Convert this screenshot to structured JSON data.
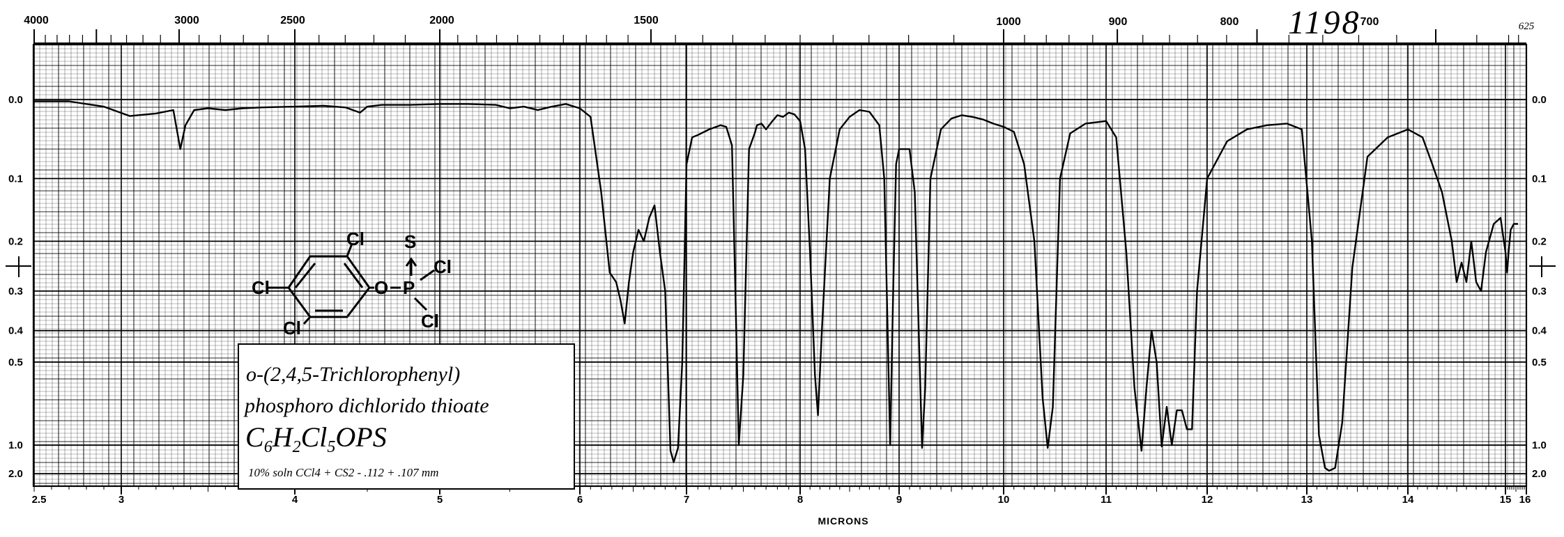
{
  "chart_data": {
    "type": "line",
    "xlabel": "MICRONS",
    "x_axis_unit": "microns",
    "xlim": [
      2.5,
      16
    ],
    "x_ticks": [
      "2.5",
      "3",
      "4",
      "5",
      "6",
      "7",
      "8",
      "9",
      "10",
      "11",
      "12",
      "13",
      "14",
      "15",
      "16"
    ],
    "top_axis_ticks": [
      "4000",
      "3000",
      "2500",
      "2000",
      "1500",
      "1000",
      "900",
      "800",
      "700",
      "625"
    ],
    "y_axis_unit": "absorbance",
    "ylim": [
      0.0,
      2.0
    ],
    "y_ticks": [
      "0.0",
      "0.1",
      "0.2",
      "0.3",
      "0.4",
      "0.5",
      "1.0",
      "2.0"
    ],
    "grid": true,
    "catalog_number": "1198",
    "compound_name_line1": "o-(2,4,5-Trichlorophenyl)",
    "compound_name_line2": "phosphoro dichlorido thioate",
    "formula": "C6H2Cl5OPS",
    "conditions": "10% soln CCl4 + CS2 - .112 + .107 mm",
    "structure_labels": [
      "Cl",
      "Cl",
      "Cl",
      "O",
      "P",
      "S",
      "Cl",
      "Cl"
    ],
    "series": [
      {
        "x": [
          2.5,
          2.7,
          2.9,
          3.05,
          3.2,
          3.3,
          3.34,
          3.37,
          3.42,
          3.5,
          3.6,
          3.7,
          3.8,
          4.0,
          4.2,
          4.35,
          4.45,
          4.5,
          4.6,
          4.8,
          5.0,
          5.2,
          5.4,
          5.5,
          5.6,
          5.7,
          5.8,
          5.9,
          6.0,
          6.1,
          6.2,
          6.28,
          6.34,
          6.38,
          6.42,
          6.46,
          6.5,
          6.55,
          6.6,
          6.65,
          6.7,
          6.75,
          6.8,
          6.85,
          6.88,
          6.92,
          6.96,
          7.0,
          7.05,
          7.1,
          7.2,
          7.3,
          7.35,
          7.4,
          7.43,
          7.46,
          7.5,
          7.55,
          7.6,
          7.62,
          7.66,
          7.7,
          7.75,
          7.8,
          7.85,
          7.9,
          7.95,
          8.0,
          8.05,
          8.1,
          8.15,
          8.18,
          8.22,
          8.3,
          8.4,
          8.5,
          8.6,
          8.7,
          8.8,
          8.85,
          8.88,
          8.91,
          8.94,
          8.97,
          9.0,
          9.05,
          9.1,
          9.15,
          9.2,
          9.22,
          9.25,
          9.3,
          9.4,
          9.5,
          9.6,
          9.7,
          9.8,
          9.9,
          10.0,
          10.1,
          10.2,
          10.3,
          10.38,
          10.43,
          10.48,
          10.55,
          10.65,
          10.8,
          11.0,
          11.1,
          11.2,
          11.28,
          11.35,
          11.4,
          11.45,
          11.5,
          11.55,
          11.6,
          11.65,
          11.7,
          11.75,
          11.8,
          11.85,
          11.9,
          12.0,
          12.2,
          12.4,
          12.6,
          12.8,
          12.95,
          13.05,
          13.12,
          13.18,
          13.22,
          13.28,
          13.35,
          13.45,
          13.6,
          13.8,
          14.0,
          14.15,
          14.25,
          14.35,
          14.45,
          14.5,
          14.55,
          14.6,
          14.65,
          14.7,
          14.75,
          14.8,
          14.88,
          14.95,
          15.0,
          15.08,
          15.15,
          15.25,
          15.4,
          15.5,
          15.6
        ],
        "y": [
          0.002,
          0.002,
          0.008,
          0.019,
          0.016,
          0.012,
          0.06,
          0.03,
          0.012,
          0.01,
          0.012,
          0.01,
          0.009,
          0.008,
          0.007,
          0.009,
          0.015,
          0.008,
          0.006,
          0.006,
          0.005,
          0.005,
          0.006,
          0.01,
          0.008,
          0.012,
          0.008,
          0.005,
          0.01,
          0.02,
          0.12,
          0.26,
          0.28,
          0.32,
          0.38,
          0.28,
          0.22,
          0.18,
          0.2,
          0.16,
          0.14,
          0.22,
          0.3,
          1.2,
          1.6,
          1.1,
          0.5,
          0.08,
          0.045,
          0.042,
          0.035,
          0.03,
          0.032,
          0.055,
          0.3,
          1.0,
          0.55,
          0.06,
          0.04,
          0.03,
          0.028,
          0.035,
          0.026,
          0.018,
          0.02,
          0.015,
          0.017,
          0.025,
          0.06,
          0.22,
          0.55,
          0.75,
          0.4,
          0.1,
          0.035,
          0.02,
          0.012,
          0.014,
          0.03,
          0.1,
          0.35,
          1.0,
          0.3,
          0.08,
          0.06,
          0.06,
          0.06,
          0.12,
          0.55,
          1.1,
          0.6,
          0.1,
          0.035,
          0.022,
          0.018,
          0.02,
          0.023,
          0.028,
          0.032,
          0.038,
          0.08,
          0.2,
          0.65,
          1.1,
          0.7,
          0.1,
          0.04,
          0.028,
          0.025,
          0.045,
          0.22,
          0.6,
          1.2,
          0.6,
          0.4,
          0.5,
          1.05,
          0.7,
          1.0,
          0.72,
          0.72,
          0.85,
          0.85,
          0.3,
          0.1,
          0.05,
          0.035,
          0.03,
          0.028,
          0.035,
          0.2,
          0.9,
          1.8,
          1.9,
          1.8,
          0.8,
          0.25,
          0.07,
          0.045,
          0.035,
          0.045,
          0.08,
          0.12,
          0.2,
          0.28,
          0.24,
          0.28,
          0.2,
          0.28,
          0.3,
          0.22,
          0.17,
          0.16,
          0.22,
          0.26,
          0.22,
          0.18,
          0.17,
          0.17,
          0.17
        ]
      }
    ]
  }
}
